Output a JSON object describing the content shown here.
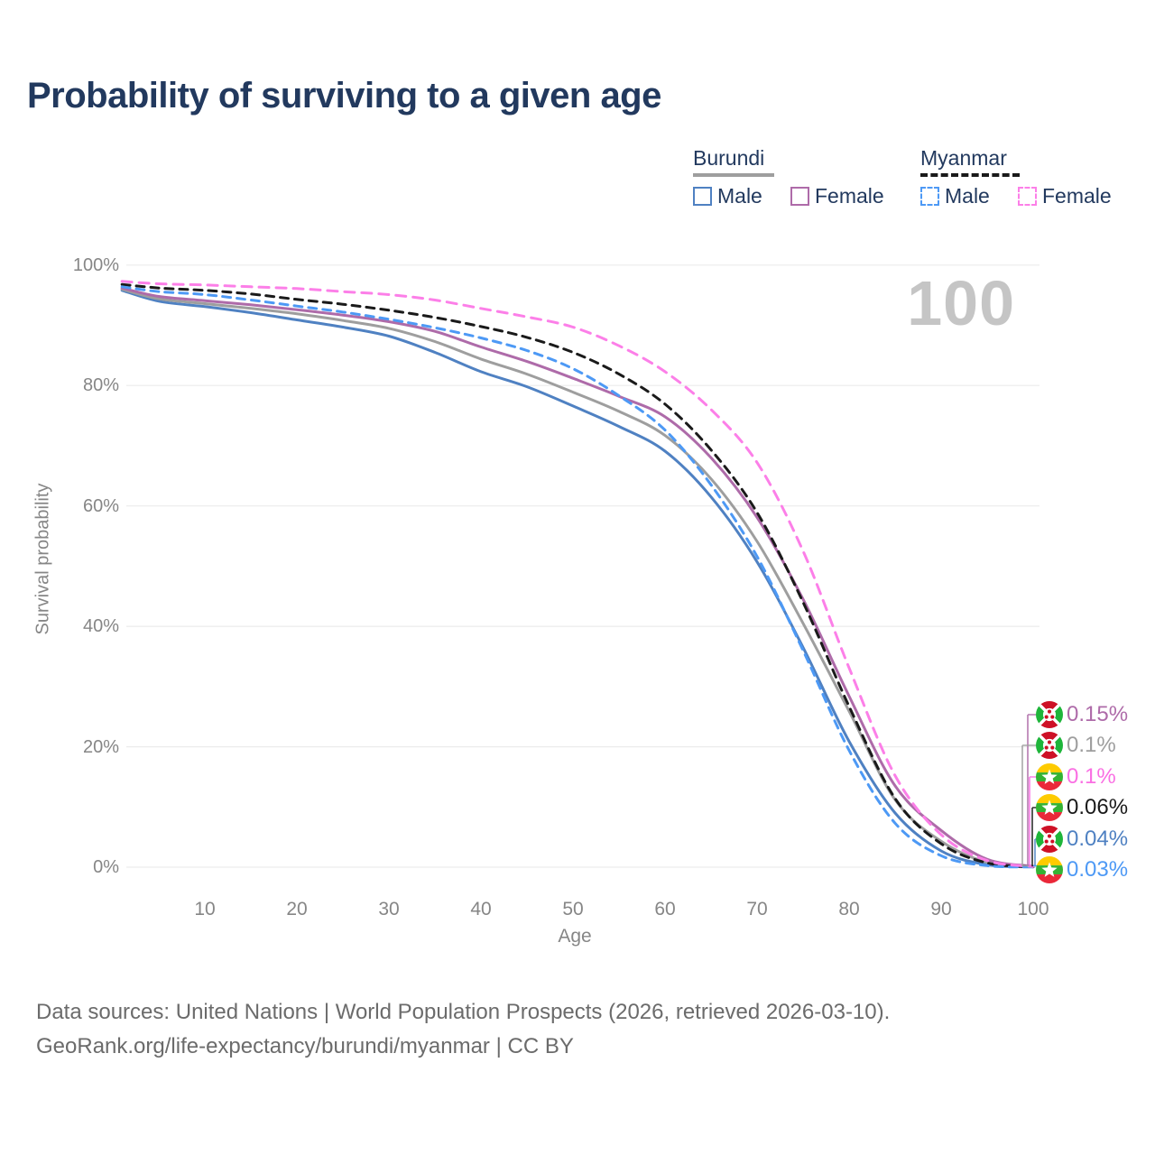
{
  "title": "Probability of surviving to a given age",
  "watermark": "100",
  "legend": {
    "groups": [
      {
        "country": "Burundi",
        "line_style": "solid",
        "underline_color": "#9e9e9e",
        "items": [
          {
            "label": "Male",
            "color": "#4F81C2",
            "dashed": false
          },
          {
            "label": "Female",
            "color": "#AE6BA9",
            "dashed": false
          }
        ]
      },
      {
        "country": "Myanmar",
        "line_style": "dashed",
        "underline_color": "#1a1a1a",
        "items": [
          {
            "label": "Male",
            "color": "#4D99F5",
            "dashed": true
          },
          {
            "label": "Female",
            "color": "#FC7FE8",
            "dashed": true
          }
        ]
      }
    ]
  },
  "chart_data": {
    "type": "line",
    "title": "Probability of surviving to a given age",
    "xlabel": "Age",
    "ylabel": "Survival probability",
    "xlim": [
      0,
      100
    ],
    "ylim": [
      0,
      100
    ],
    "grid": "horizontal",
    "x_ticks": [
      10,
      20,
      30,
      40,
      50,
      60,
      70,
      80,
      90,
      100
    ],
    "x_tick_labels": [
      "10",
      "20",
      "30",
      "40",
      "50",
      "60",
      "70",
      "80",
      "90",
      "100"
    ],
    "y_ticks": [
      0,
      20,
      40,
      60,
      80,
      100
    ],
    "y_tick_labels": [
      "100%",
      "80%",
      "60%",
      "40%",
      "20%",
      "0%"
    ],
    "ages": [
      1,
      5,
      10,
      15,
      20,
      25,
      30,
      35,
      40,
      45,
      50,
      55,
      60,
      65,
      70,
      75,
      80,
      85,
      90,
      95,
      100
    ],
    "series": [
      {
        "name": "Burundi Male",
        "color": "#4F81C2",
        "dashed": false,
        "values": [
          95.8,
          94.0,
          93.1,
          92.1,
          90.9,
          89.7,
          88.2,
          85.5,
          82.3,
          79.8,
          76.6,
          73.2,
          69.1,
          61.5,
          50.7,
          36.5,
          20.9,
          9.0,
          2.7,
          0.4,
          0.04
        ]
      },
      {
        "name": "Burundi Both sexes",
        "color": "#9E9E9E",
        "dashed": false,
        "values": [
          96.0,
          94.4,
          93.6,
          92.8,
          91.9,
          90.8,
          89.5,
          87.3,
          84.4,
          81.9,
          78.9,
          75.7,
          71.7,
          64.5,
          54.1,
          40.5,
          25.9,
          11.2,
          4.3,
          0.8,
          0.1
        ]
      },
      {
        "name": "Burundi Female",
        "color": "#AE6BA9",
        "dashed": false,
        "values": [
          96.2,
          94.8,
          94.1,
          93.4,
          92.6,
          91.7,
          90.6,
          89.0,
          86.4,
          84.0,
          81.2,
          78.2,
          74.8,
          68.0,
          58.1,
          44.5,
          28.4,
          13.5,
          6.1,
          1.3,
          0.15
        ]
      },
      {
        "name": "Myanmar Both sexes",
        "color": "#1A1A1A",
        "dashed": true,
        "values": [
          96.8,
          96.2,
          95.8,
          95.2,
          94.3,
          93.5,
          92.5,
          91.3,
          89.8,
          88.0,
          85.5,
          81.9,
          76.9,
          69.3,
          58.9,
          44.0,
          26.7,
          11.4,
          3.9,
          0.7,
          0.06
        ]
      },
      {
        "name": "Myanmar Male",
        "color": "#4D99F5",
        "dashed": true,
        "values": [
          96.4,
          95.6,
          95.1,
          94.2,
          93.2,
          92.2,
          91.0,
          89.6,
          87.9,
          85.8,
          82.8,
          78.3,
          72.6,
          63.5,
          51.6,
          36.0,
          19.4,
          7.3,
          1.9,
          0.25,
          0.03
        ]
      },
      {
        "name": "Myanmar Female",
        "color": "#FC7FE8",
        "dashed": true,
        "values": [
          97.3,
          96.9,
          96.7,
          96.4,
          96.1,
          95.6,
          95.1,
          94.2,
          92.8,
          91.4,
          89.7,
          86.6,
          82.3,
          76.0,
          67.2,
          52.5,
          33.1,
          15.2,
          5.4,
          1.1,
          0.1
        ]
      }
    ]
  },
  "end_labels": [
    {
      "value": "0.15%",
      "country": "Burundi",
      "flag_ref": "#flag-burundi",
      "color": "#AE6BA9"
    },
    {
      "value": "0.1%",
      "country": "Burundi",
      "flag_ref": "#flag-burundi",
      "color": "#9E9E9E"
    },
    {
      "value": "0.1%",
      "country": "Myanmar",
      "flag_ref": "#flag-myanmar",
      "color": "#FA6FE3"
    },
    {
      "value": "0.06%",
      "country": "Myanmar",
      "flag_ref": "#flag-myanmar",
      "color": "#1A1A1A"
    },
    {
      "value": "0.04%",
      "country": "Burundi",
      "flag_ref": "#flag-burundi",
      "color": "#4F81C2"
    },
    {
      "value": "0.03%",
      "country": "Myanmar",
      "flag_ref": "#flag-myanmar",
      "color": "#4D99F5"
    }
  ],
  "footer": {
    "line1": "Data sources: United Nations | World Population Prospects (2026, retrieved 2026-03-10).",
    "line2": "GeoRank.org/life-expectancy/burundi/myanmar | CC BY"
  }
}
